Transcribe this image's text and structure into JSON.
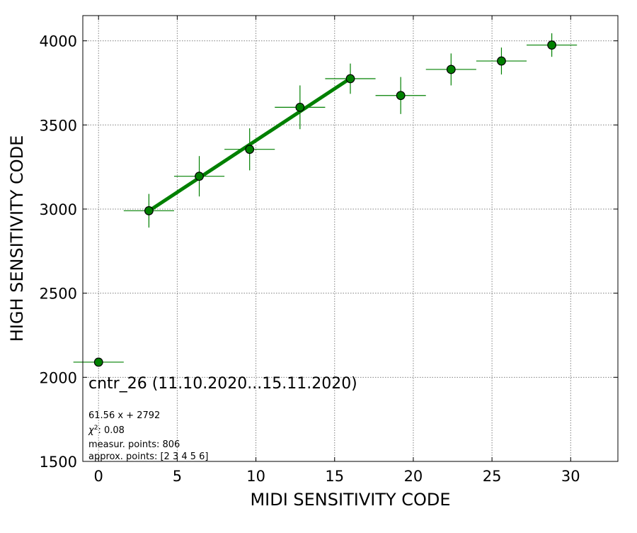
{
  "chart_data": {
    "type": "scatter",
    "title": "",
    "xlabel": "MIDI SENSITIVITY CODE",
    "ylabel": "HIGH SENSITIVITY CODE",
    "xlim": [
      -1,
      33
    ],
    "ylim": [
      1500,
      4150
    ],
    "xticks": [
      0,
      5,
      10,
      15,
      20,
      25,
      30
    ],
    "yticks": [
      1500,
      2000,
      2500,
      3000,
      3500,
      4000
    ],
    "grid": true,
    "grid_style": "dotted",
    "point_color": "#008000",
    "point_edge_color": "#000000",
    "errorbar_color": "#008000",
    "fit_line_color": "#008000",
    "series": [
      {
        "points": [
          {
            "x": 0.0,
            "y": 2090,
            "xerr": 1.6,
            "yerr": 0
          },
          {
            "x": 3.2,
            "y": 2990,
            "xerr": 1.6,
            "yerr": 100
          },
          {
            "x": 6.4,
            "y": 3195,
            "xerr": 1.6,
            "yerr": 120
          },
          {
            "x": 9.6,
            "y": 3355,
            "xerr": 1.6,
            "yerr": 125
          },
          {
            "x": 12.8,
            "y": 3605,
            "xerr": 1.6,
            "yerr": 130
          },
          {
            "x": 16.0,
            "y": 3775,
            "xerr": 1.6,
            "yerr": 90
          },
          {
            "x": 19.2,
            "y": 3675,
            "xerr": 1.6,
            "yerr": 110
          },
          {
            "x": 22.4,
            "y": 3830,
            "xerr": 1.6,
            "yerr": 95
          },
          {
            "x": 25.6,
            "y": 3880,
            "xerr": 1.6,
            "yerr": 80
          },
          {
            "x": 28.8,
            "y": 3975,
            "xerr": 1.6,
            "yerr": 70
          }
        ]
      }
    ],
    "fit": {
      "slope": 61.56,
      "intercept": 2792,
      "x_range": [
        3.2,
        16.0
      ]
    },
    "annotations": {
      "title": "cntr_26 (11.10.2020...15.11.2020)",
      "equation": "61.56 x + 2792",
      "chi2_symbol": "χ",
      "chi2_sup": "2",
      "chi2_value": ": 0.08",
      "measur_points": "measur. points: 806",
      "approx_points": "approx. points: [2 3 4 5 6]"
    }
  }
}
